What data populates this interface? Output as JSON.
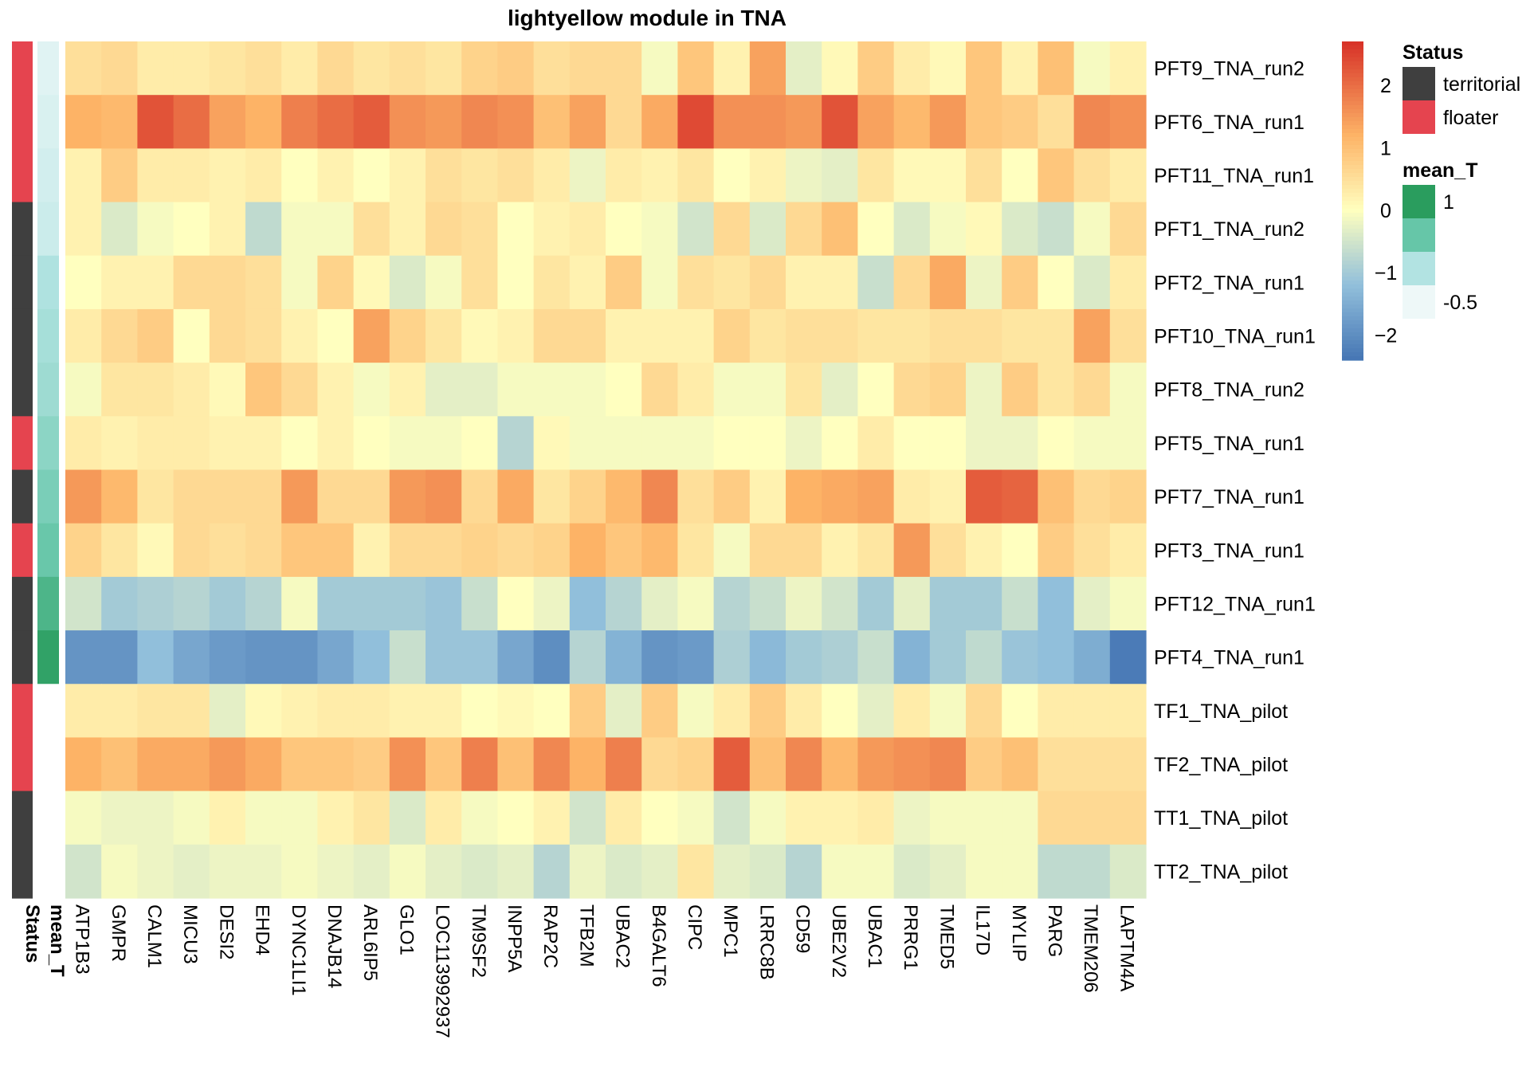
{
  "chart_data": {
    "type": "heatmap",
    "title": "lightyellow module in TNA",
    "rows": [
      "PFT9_TNA_run2",
      "PFT6_TNA_run1",
      "PFT11_TNA_run1",
      "PFT1_TNA_run2",
      "PFT2_TNA_run1",
      "PFT10_TNA_run1",
      "PFT8_TNA_run2",
      "PFT5_TNA_run1",
      "PFT7_TNA_run1",
      "PFT3_TNA_run1",
      "PFT12_TNA_run1",
      "PFT4_TNA_run1",
      "TF1_TNA_pilot",
      "TF2_TNA_pilot",
      "TT1_TNA_pilot",
      "TT2_TNA_pilot"
    ],
    "columns": [
      "ATP1B3",
      "GMPR",
      "CALM1",
      "MICU3",
      "DESI2",
      "EHD4",
      "DYNC1LI1",
      "DNAJB14",
      "ARL6IP5",
      "GLO1",
      "LOC113992937",
      "TM9SF2",
      "INPP5A",
      "RAP2C",
      "TFB2M",
      "UBAC2",
      "B4GALT6",
      "CIPC",
      "MPC1",
      "LRRC8B",
      "CD59",
      "UBE2V2",
      "UBAC1",
      "PRRG1",
      "TMED5",
      "IL17D",
      "MYLIP",
      "PARG",
      "TMEM206",
      "LAPTM4A"
    ],
    "values": [
      [
        0.5,
        0.6,
        0.3,
        0.3,
        0.4,
        0.5,
        0.3,
        0.6,
        0.4,
        0.5,
        0.4,
        0.7,
        0.8,
        0.5,
        0.6,
        0.6,
        -0.1,
        0.9,
        0.2,
        1.4,
        -0.3,
        0.1,
        0.8,
        0.3,
        0.1,
        0.9,
        0.2,
        1.0,
        -0.1,
        0.2
      ],
      [
        1.2,
        1.1,
        2.3,
        2.0,
        1.4,
        1.2,
        1.8,
        2.0,
        2.2,
        1.6,
        1.5,
        1.7,
        1.6,
        1.0,
        1.4,
        0.6,
        1.3,
        2.4,
        1.6,
        1.6,
        1.5,
        2.3,
        1.4,
        1.1,
        1.5,
        0.9,
        0.8,
        0.5,
        1.7,
        1.6
      ],
      [
        0.2,
        0.8,
        0.3,
        0.3,
        0.2,
        0.3,
        0.0,
        0.2,
        0.0,
        0.2,
        0.5,
        0.4,
        0.5,
        0.3,
        -0.2,
        0.3,
        0.2,
        0.4,
        0.0,
        0.2,
        -0.2,
        -0.3,
        0.4,
        0.1,
        0.1,
        0.5,
        0.0,
        0.9,
        0.5,
        0.3
      ],
      [
        0.2,
        -0.4,
        -0.1,
        0.0,
        0.2,
        -0.7,
        -0.1,
        -0.1,
        0.5,
        0.2,
        0.6,
        0.5,
        0.0,
        0.2,
        0.3,
        0.0,
        -0.1,
        -0.5,
        0.6,
        -0.4,
        0.6,
        1.0,
        0.0,
        -0.4,
        -0.1,
        0.1,
        -0.4,
        -0.6,
        -0.1,
        0.6
      ],
      [
        0.0,
        0.2,
        0.2,
        0.6,
        0.6,
        0.5,
        -0.1,
        0.7,
        0.1,
        -0.4,
        -0.1,
        0.5,
        0.0,
        0.4,
        0.2,
        0.8,
        -0.1,
        0.5,
        0.4,
        0.6,
        0.2,
        0.2,
        -0.6,
        0.6,
        1.3,
        -0.2,
        0.8,
        0.0,
        -0.4,
        0.3
      ],
      [
        0.3,
        0.6,
        0.8,
        0.0,
        0.6,
        0.5,
        0.2,
        0.0,
        1.4,
        0.7,
        0.4,
        0.1,
        0.2,
        0.6,
        0.6,
        0.2,
        0.2,
        0.2,
        0.7,
        0.4,
        0.5,
        0.5,
        0.4,
        0.4,
        0.5,
        0.5,
        0.4,
        0.4,
        1.4,
        0.5
      ],
      [
        -0.1,
        0.4,
        0.4,
        0.3,
        0.1,
        0.9,
        0.6,
        0.2,
        -0.1,
        0.2,
        -0.3,
        -0.3,
        -0.1,
        -0.1,
        -0.1,
        0.0,
        0.6,
        0.3,
        -0.1,
        -0.1,
        0.4,
        -0.3,
        0.0,
        0.6,
        0.7,
        -0.2,
        0.8,
        0.4,
        0.6,
        -0.1
      ],
      [
        0.3,
        0.2,
        0.3,
        0.3,
        0.2,
        0.2,
        0.0,
        0.2,
        0.0,
        -0.1,
        -0.1,
        0.0,
        -0.8,
        0.1,
        -0.1,
        -0.1,
        -0.1,
        -0.1,
        0.0,
        0.0,
        -0.2,
        0.0,
        0.3,
        0.0,
        0.0,
        -0.2,
        -0.2,
        0.0,
        -0.1,
        -0.1
      ],
      [
        1.5,
        1.1,
        0.4,
        0.6,
        0.6,
        0.6,
        1.5,
        0.6,
        0.6,
        1.5,
        1.6,
        0.6,
        1.3,
        0.4,
        0.7,
        1.1,
        1.7,
        0.5,
        0.8,
        0.2,
        1.2,
        1.3,
        1.4,
        0.3,
        0.2,
        2.2,
        2.1,
        1.0,
        0.6,
        0.7
      ],
      [
        0.7,
        0.4,
        0.1,
        0.6,
        0.5,
        0.6,
        0.9,
        0.9,
        0.2,
        0.6,
        0.6,
        0.7,
        0.6,
        0.7,
        1.2,
        0.9,
        1.1,
        0.4,
        -0.1,
        0.6,
        0.6,
        0.2,
        0.4,
        1.5,
        0.5,
        0.2,
        0.0,
        0.8,
        0.5,
        0.3
      ],
      [
        -0.5,
        -1.0,
        -0.9,
        -0.8,
        -1.0,
        -0.8,
        -0.1,
        -1.0,
        -1.0,
        -1.0,
        -1.1,
        -0.6,
        0.0,
        -0.2,
        -1.2,
        -0.8,
        -0.3,
        -0.1,
        -0.8,
        -0.6,
        -0.2,
        -0.5,
        -1.0,
        -0.3,
        -1.0,
        -1.0,
        -0.6,
        -1.2,
        -0.3,
        -0.1
      ],
      [
        -1.9,
        -1.9,
        -1.2,
        -1.6,
        -1.8,
        -1.9,
        -1.9,
        -1.6,
        -1.2,
        -0.6,
        -1.1,
        -1.1,
        -1.6,
        -2.0,
        -0.8,
        -1.4,
        -1.9,
        -1.8,
        -0.9,
        -1.3,
        -1.0,
        -0.9,
        -0.6,
        -1.4,
        -1.0,
        -0.7,
        -1.1,
        -1.2,
        -1.5,
        -2.3
      ],
      [
        0.3,
        0.3,
        0.4,
        0.4,
        -0.3,
        0.1,
        0.2,
        0.3,
        0.3,
        0.2,
        0.2,
        0.0,
        0.1,
        0.0,
        0.8,
        -0.3,
        0.8,
        -0.1,
        0.3,
        0.8,
        0.3,
        0.0,
        -0.3,
        0.3,
        -0.1,
        0.6,
        0.0,
        0.3,
        0.3,
        0.3
      ],
      [
        1.2,
        1.0,
        1.3,
        1.3,
        1.5,
        1.3,
        0.9,
        0.9,
        0.8,
        1.6,
        0.9,
        1.8,
        1.0,
        1.7,
        1.2,
        1.8,
        0.6,
        0.7,
        2.2,
        1.0,
        1.7,
        1.1,
        1.5,
        1.6,
        1.7,
        0.8,
        1.0,
        0.5,
        0.5,
        0.5
      ],
      [
        -0.1,
        -0.2,
        -0.2,
        -0.1,
        0.2,
        -0.1,
        -0.1,
        0.2,
        0.4,
        -0.4,
        0.3,
        -0.1,
        0.0,
        0.2,
        -0.5,
        0.3,
        0.0,
        -0.1,
        -0.5,
        -0.1,
        0.2,
        0.2,
        0.3,
        -0.2,
        -0.1,
        -0.1,
        -0.1,
        0.6,
        0.6,
        0.6
      ],
      [
        -0.5,
        -0.1,
        -0.2,
        -0.3,
        -0.2,
        -0.2,
        -0.1,
        -0.2,
        -0.3,
        -0.1,
        -0.3,
        -0.4,
        -0.3,
        -0.8,
        -0.2,
        -0.4,
        -0.3,
        0.4,
        -0.3,
        -0.4,
        -0.8,
        -0.1,
        -0.1,
        -0.4,
        -0.3,
        -0.1,
        -0.1,
        -0.7,
        -0.7,
        -0.4
      ]
    ],
    "color_scale": {
      "breaks": [
        -2.4,
        -1.2,
        0,
        1.2,
        2.7
      ],
      "colors": [
        "#4575B4",
        "#91BFDB",
        "#FFFFBF",
        "#FDB366",
        "#D73027"
      ],
      "ticks": [
        2,
        1,
        0,
        -1,
        -2
      ]
    },
    "annotations": {
      "status_label": "Status",
      "mean_t_label": "mean_T",
      "status": [
        "floater",
        "floater",
        "floater",
        "territorial",
        "territorial",
        "territorial",
        "territorial",
        "floater",
        "territorial",
        "floater",
        "territorial",
        "territorial",
        "floater",
        "floater",
        "territorial",
        "territorial"
      ],
      "mean_t": [
        -0.5,
        -0.45,
        -0.4,
        -0.35,
        -0.15,
        -0.1,
        -0.05,
        0.05,
        0.15,
        0.25,
        0.45,
        0.65,
        null,
        null,
        null,
        null
      ]
    },
    "legend": {
      "status_title": "Status",
      "status_items": [
        {
          "label": "territorial",
          "color": "#3F3F3F"
        },
        {
          "label": "floater",
          "color": "#E5444F"
        }
      ],
      "mean_t_title": "mean_T",
      "mean_t_labels": [
        "1",
        "-0.5"
      ],
      "mean_t_colors": [
        "#2A9D5E",
        "#66C6A8",
        "#B2E3E2",
        "#EEF8F8"
      ],
      "mean_t_range": [
        -0.6,
        0.7
      ]
    }
  }
}
